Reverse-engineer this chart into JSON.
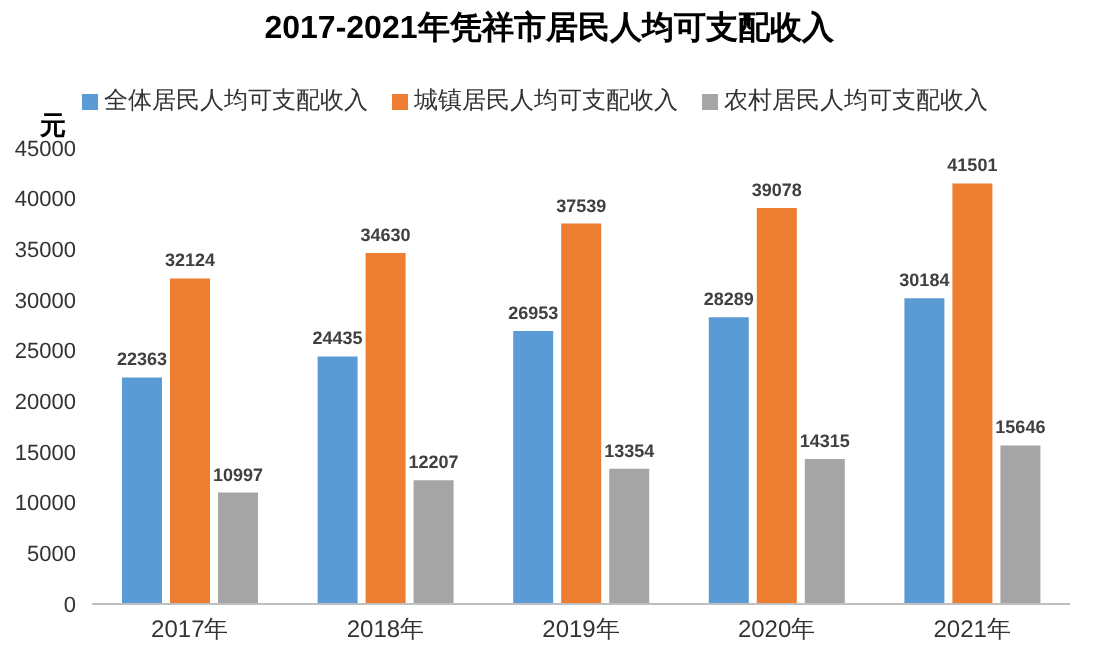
{
  "chart_data": {
    "type": "bar",
    "title": "2017-2021年凭祥市居民人均可支配收入",
    "ylabel": "元",
    "categories": [
      "2017年",
      "2018年",
      "2019年",
      "2020年",
      "2021年"
    ],
    "series": [
      {
        "name": "全体居民人均可支配收入",
        "color": "#5b9bd5",
        "values": [
          22363,
          24435,
          26953,
          28289,
          30184
        ]
      },
      {
        "name": "城镇居民人均可支配收入",
        "color": "#ed7d31",
        "values": [
          32124,
          34630,
          37539,
          39078,
          41501
        ]
      },
      {
        "name": "农村居民人均可支配收入",
        "color": "#a5a5a5",
        "values": [
          10997,
          12207,
          13354,
          14315,
          15646
        ]
      }
    ],
    "ylim": [
      0,
      45000
    ],
    "yticks": [
      0,
      5000,
      10000,
      15000,
      20000,
      25000,
      30000,
      35000,
      40000,
      45000
    ],
    "data_labels": true,
    "legend": "top",
    "grid": false
  }
}
